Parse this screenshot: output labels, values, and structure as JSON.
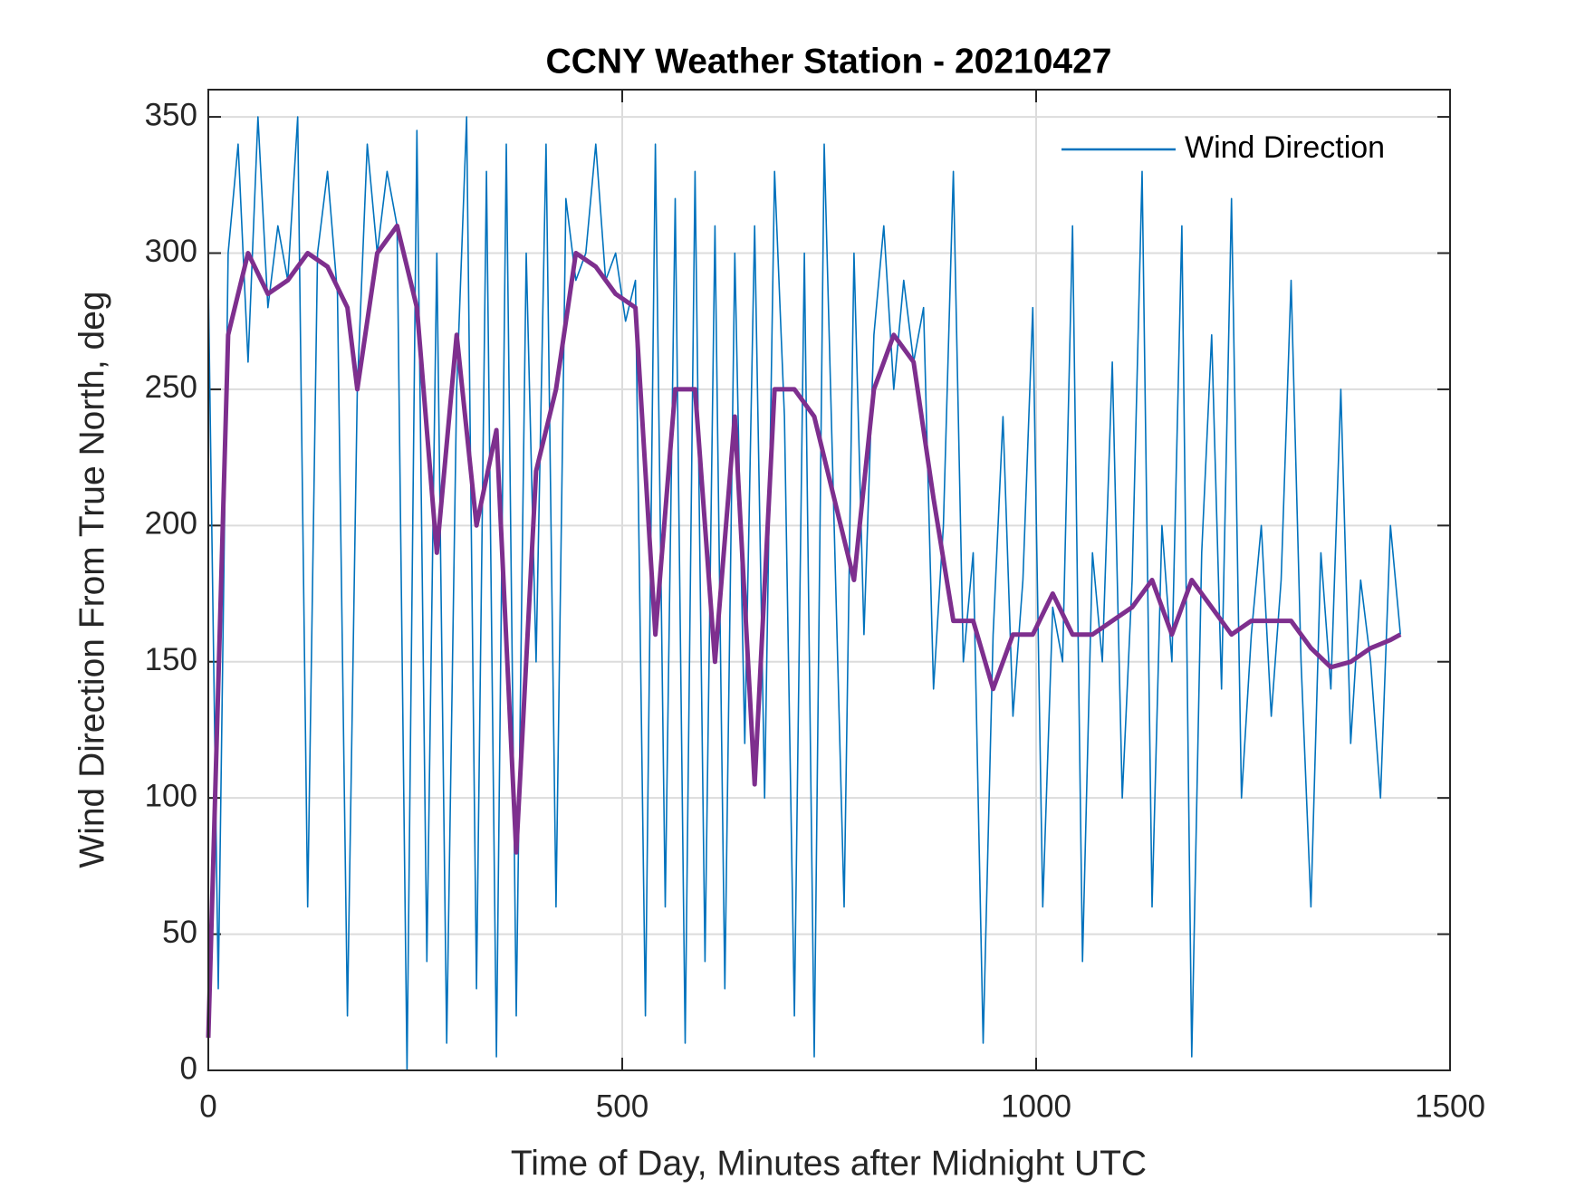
{
  "chart_data": {
    "type": "line",
    "title": "CCNY Weather Station - 20210427",
    "xlabel": "Time of Day, Minutes after Midnight UTC",
    "ylabel": "Wind Direction From True North, deg",
    "xlim": [
      0,
      1500
    ],
    "xticks": [
      0,
      500,
      1000,
      1500
    ],
    "ylim": [
      0,
      360
    ],
    "yticks": [
      0,
      50,
      100,
      150,
      200,
      250,
      300,
      350
    ],
    "grid": true,
    "legend": "upper right",
    "series": [
      {
        "name": "Wind Direction",
        "color": "#0072bd",
        "x": [
          0,
          12,
          24,
          36,
          48,
          60,
          72,
          84,
          96,
          108,
          120,
          132,
          144,
          156,
          168,
          180,
          192,
          204,
          216,
          228,
          240,
          252,
          264,
          276,
          288,
          300,
          312,
          324,
          336,
          348,
          360,
          372,
          384,
          396,
          408,
          420,
          432,
          444,
          456,
          468,
          480,
          492,
          504,
          516,
          528,
          540,
          552,
          564,
          576,
          588,
          600,
          612,
          624,
          636,
          648,
          660,
          672,
          684,
          696,
          708,
          720,
          732,
          744,
          756,
          768,
          780,
          792,
          804,
          816,
          828,
          840,
          852,
          864,
          876,
          888,
          900,
          912,
          924,
          936,
          948,
          960,
          972,
          984,
          996,
          1008,
          1020,
          1032,
          1044,
          1056,
          1068,
          1080,
          1092,
          1104,
          1116,
          1128,
          1140,
          1152,
          1164,
          1176,
          1188,
          1200,
          1212,
          1224,
          1236,
          1248,
          1260,
          1272,
          1284,
          1296,
          1308,
          1320,
          1332,
          1344,
          1356,
          1368,
          1380,
          1392,
          1404,
          1416,
          1428,
          1440
        ],
        "values": [
          290,
          30,
          300,
          340,
          260,
          350,
          280,
          310,
          290,
          350,
          60,
          300,
          330,
          285,
          20,
          250,
          340,
          300,
          330,
          310,
          0,
          345,
          40,
          300,
          10,
          250,
          350,
          30,
          330,
          5,
          340,
          20,
          300,
          150,
          340,
          60,
          320,
          290,
          300,
          340,
          290,
          300,
          275,
          290,
          20,
          340,
          60,
          320,
          10,
          330,
          40,
          310,
          30,
          300,
          120,
          310,
          100,
          330,
          240,
          20,
          300,
          5,
          340,
          200,
          60,
          300,
          160,
          270,
          310,
          250,
          290,
          260,
          280,
          140,
          200,
          330,
          150,
          190,
          10,
          160,
          240,
          130,
          180,
          280,
          60,
          170,
          150,
          310,
          40,
          190,
          150,
          260,
          100,
          180,
          330,
          60,
          200,
          150,
          310,
          5,
          190,
          270,
          140,
          320,
          100,
          160,
          200,
          130,
          180,
          290,
          150,
          60,
          190,
          140,
          250,
          120,
          180,
          150,
          100,
          200,
          160
        ]
      },
      {
        "color": "#7e2f8e",
        "x": [
          0,
          24,
          48,
          72,
          96,
          120,
          144,
          168,
          180,
          204,
          228,
          252,
          276,
          300,
          324,
          348,
          372,
          396,
          420,
          444,
          468,
          492,
          516,
          540,
          564,
          588,
          612,
          636,
          660,
          684,
          708,
          732,
          756,
          780,
          804,
          828,
          852,
          876,
          900,
          924,
          948,
          972,
          996,
          1020,
          1044,
          1068,
          1092,
          1116,
          1140,
          1164,
          1188,
          1212,
          1236,
          1260,
          1284,
          1308,
          1332,
          1356,
          1380,
          1404,
          1428,
          1440
        ],
        "values": [
          12,
          270,
          300,
          285,
          290,
          300,
          295,
          280,
          250,
          300,
          310,
          280,
          190,
          270,
          200,
          235,
          80,
          220,
          250,
          300,
          295,
          285,
          280,
          160,
          250,
          250,
          150,
          240,
          105,
          250,
          250,
          240,
          210,
          180,
          250,
          270,
          260,
          210,
          165,
          165,
          140,
          160,
          160,
          175,
          160,
          160,
          165,
          170,
          180,
          160,
          180,
          170,
          160,
          165,
          165,
          165,
          155,
          148,
          150,
          155,
          158,
          160
        ]
      }
    ]
  }
}
